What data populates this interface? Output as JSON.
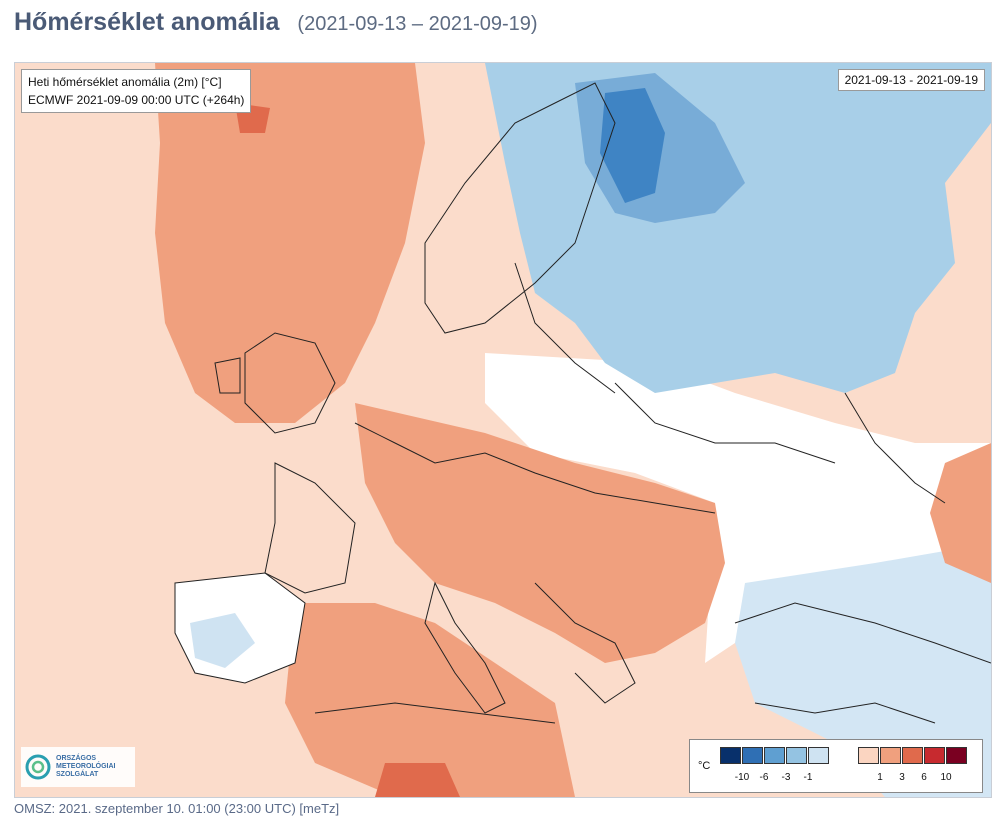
{
  "header": {
    "title": "Hőmérséklet anomália",
    "date_range": "(2021-09-13 – 2021-09-19)"
  },
  "map": {
    "info_line1": "Heti hőmérséklet anomália (2m) [°C]",
    "info_line2": "ECMWF 2021-09-09 00:00 UTC (+264h)",
    "date_box": "2021-09-13 - 2021-09-19",
    "legend": {
      "unit": "°C",
      "cold_colors": [
        "#08306b",
        "#2f6fb4",
        "#5f9fd1",
        "#94c3e2",
        "#cfe3f2"
      ],
      "cold_labels": [
        "-10",
        "-6",
        "-3",
        "-1"
      ],
      "warm_colors": [
        "#fbd5c1",
        "#f0a07e",
        "#e06a4c",
        "#c72a2f",
        "#7a0021"
      ],
      "warm_labels": [
        "1",
        "3",
        "6",
        "10"
      ]
    },
    "logo": {
      "line1": "ORSZÁGOS",
      "line2": "METEOROLÓGIAI",
      "line3": "SZOLGÁLAT"
    }
  },
  "footer": {
    "text": "OMSZ: 2021. szeptember 10. 01:00 (23:00  UTC)  [meTz]"
  }
}
